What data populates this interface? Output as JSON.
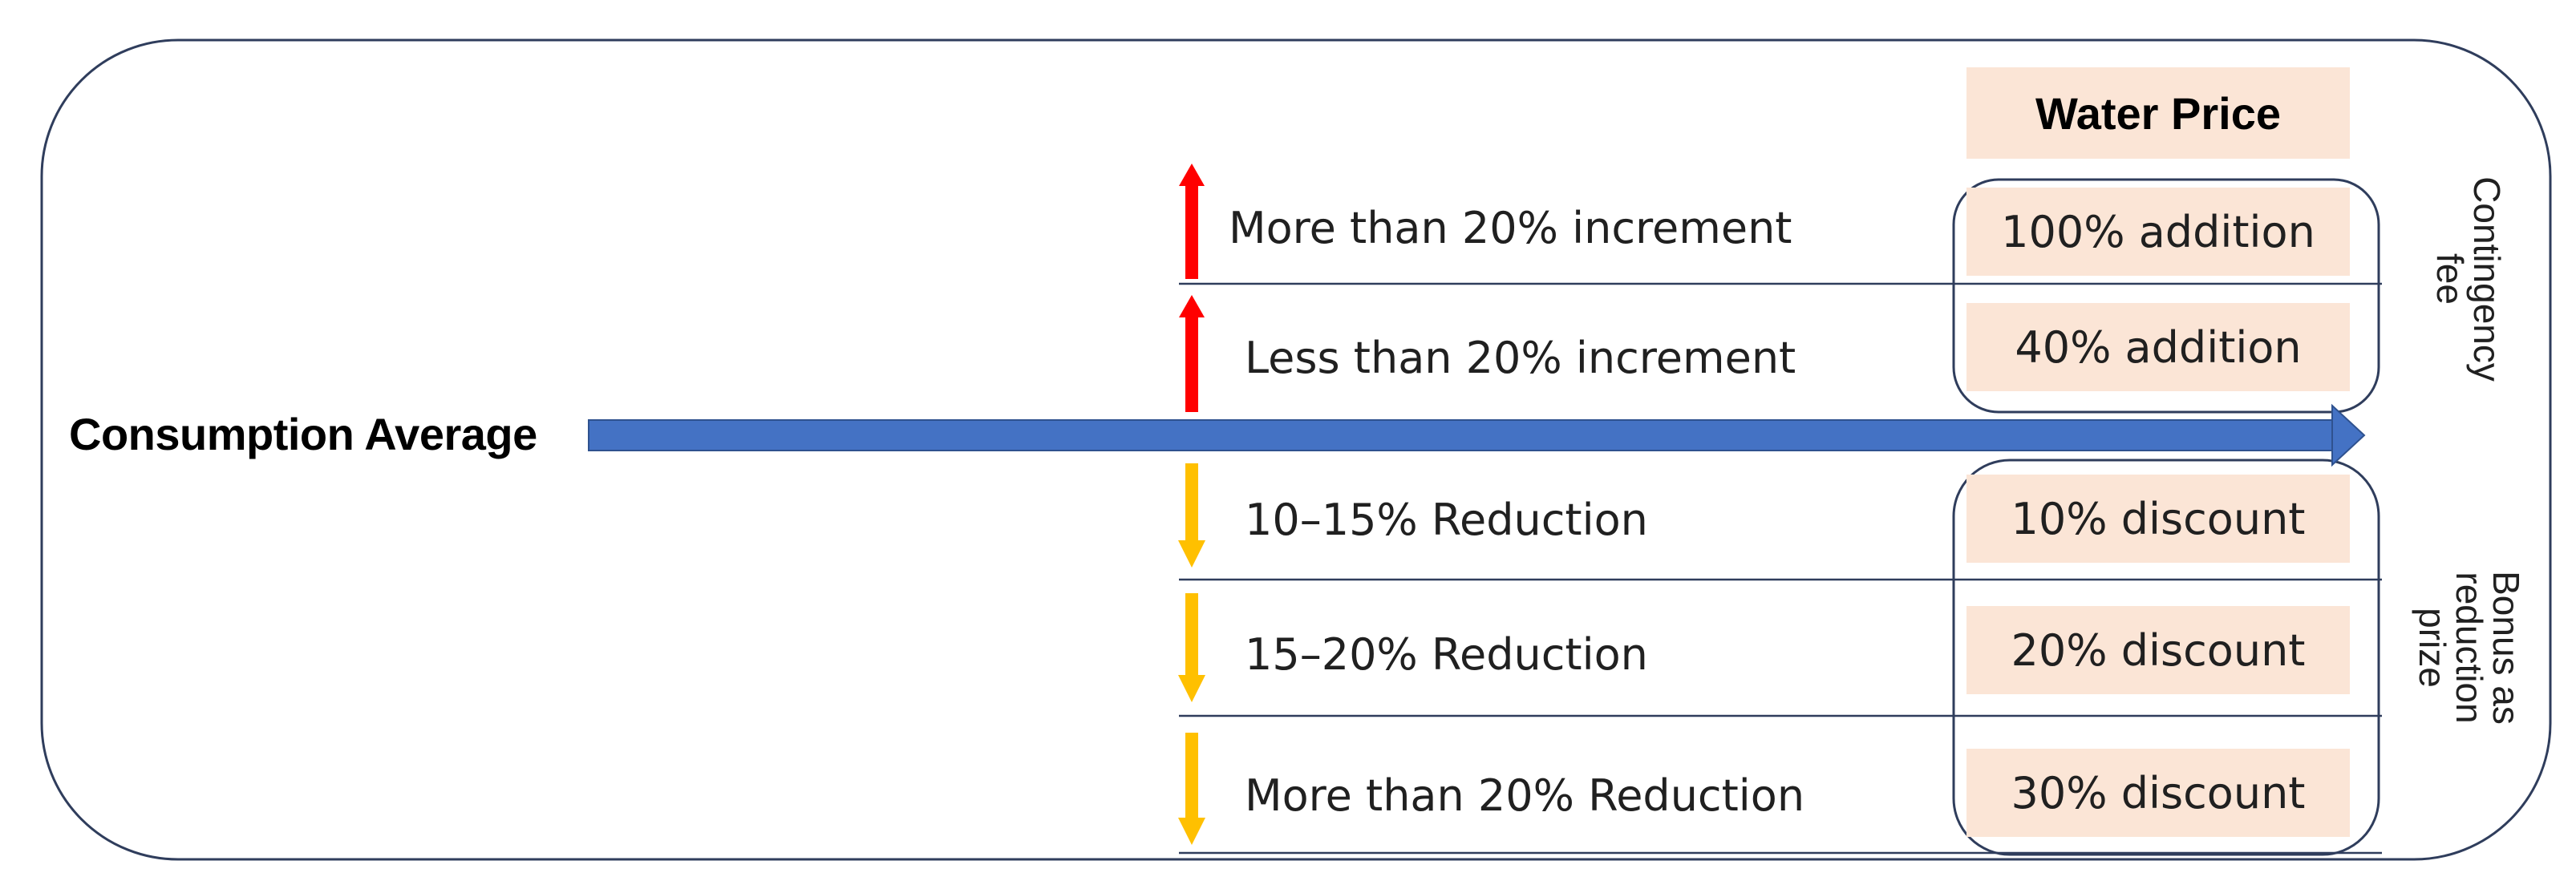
{
  "left_label": "Consumption Average",
  "header": "Water Price",
  "rows": [
    {
      "direction": "up",
      "color": "#ff0000",
      "label": "More than 20% increment",
      "price": "100% addition"
    },
    {
      "direction": "up",
      "color": "#ff0000",
      "label": "Less than 20% increment",
      "price": "40% addition"
    },
    {
      "direction": "down",
      "color": "#ffc000",
      "label": "10–15% Reduction",
      "price": "10% discount"
    },
    {
      "direction": "down",
      "color": "#ffc000",
      "label": "15–20% Reduction",
      "price": "20% discount"
    },
    {
      "direction": "down",
      "color": "#ffc000",
      "label": "More than 20% Reduction",
      "price": "30% discount"
    }
  ],
  "groups": {
    "upper": {
      "lines": [
        "Contingency",
        "fee"
      ]
    },
    "lower": {
      "lines": [
        "Bonus as",
        "reduction",
        "prize"
      ]
    }
  },
  "colors": {
    "main_arrow": "#4472c4",
    "outline": "#2f3d5c",
    "price_fill": "#fbe5d6",
    "up_arrow": "#ff0000",
    "down_arrow": "#ffc000"
  }
}
